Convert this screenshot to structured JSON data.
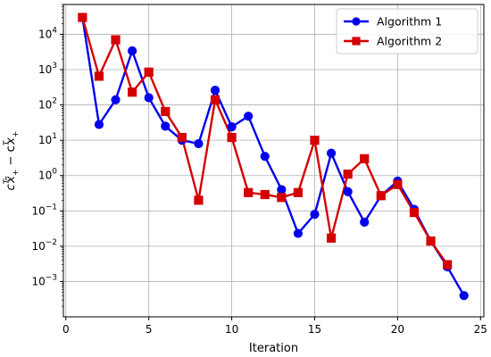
{
  "chart_data": {
    "type": "line",
    "title": "",
    "xlabel": "Iteration",
    "ylabel_parts": [
      "c",
      "T",
      "x̃",
      "+",
      " − c",
      "T",
      "x",
      "+"
    ],
    "xlim": [
      -0.15,
      25.2
    ],
    "ylim": [
      0.0001,
      70000
    ],
    "yscale": "log",
    "grid": true,
    "legend_position": "top-right",
    "xticks": [
      0,
      5,
      10,
      15,
      20,
      25
    ],
    "xtick_labels": [
      "0",
      "5",
      "10",
      "15",
      "20",
      "25"
    ],
    "yticks": [
      0.001,
      0.01,
      0.1,
      1,
      10,
      100,
      1000,
      10000
    ],
    "ytick_base": "10",
    "ytick_exponents": [
      "−3",
      "−2",
      "−1",
      "0",
      "1",
      "2",
      "3",
      "4"
    ],
    "series": [
      {
        "name": "Algorithm 1",
        "color": "#0000ee",
        "marker": "circle",
        "x": [
          1,
          2,
          3,
          4,
          5,
          6,
          7,
          8,
          9,
          10,
          11,
          12,
          13,
          14,
          15,
          16,
          17,
          18,
          19,
          20,
          21,
          22,
          23,
          24
        ],
        "y": [
          30000,
          28,
          140,
          3400,
          160,
          25,
          10,
          8,
          260,
          24,
          48,
          3.5,
          0.4,
          0.023,
          0.08,
          4.3,
          0.35,
          0.048,
          0.27,
          0.7,
          0.11,
          0.014,
          0.0026,
          0.0004
        ]
      },
      {
        "name": "Algorithm 2",
        "color": "#d40000",
        "marker": "square",
        "x": [
          1,
          2,
          3,
          4,
          5,
          6,
          7,
          8,
          9,
          10,
          11,
          12,
          13,
          14,
          15,
          16,
          17,
          18,
          19,
          20,
          21,
          22,
          23
        ],
        "y": [
          30000,
          650,
          7000,
          230,
          850,
          65,
          12,
          0.2,
          140,
          12,
          0.33,
          0.29,
          0.24,
          0.33,
          10,
          0.017,
          1.1,
          3,
          0.27,
          0.56,
          0.09,
          0.014,
          0.003
        ]
      }
    ]
  }
}
